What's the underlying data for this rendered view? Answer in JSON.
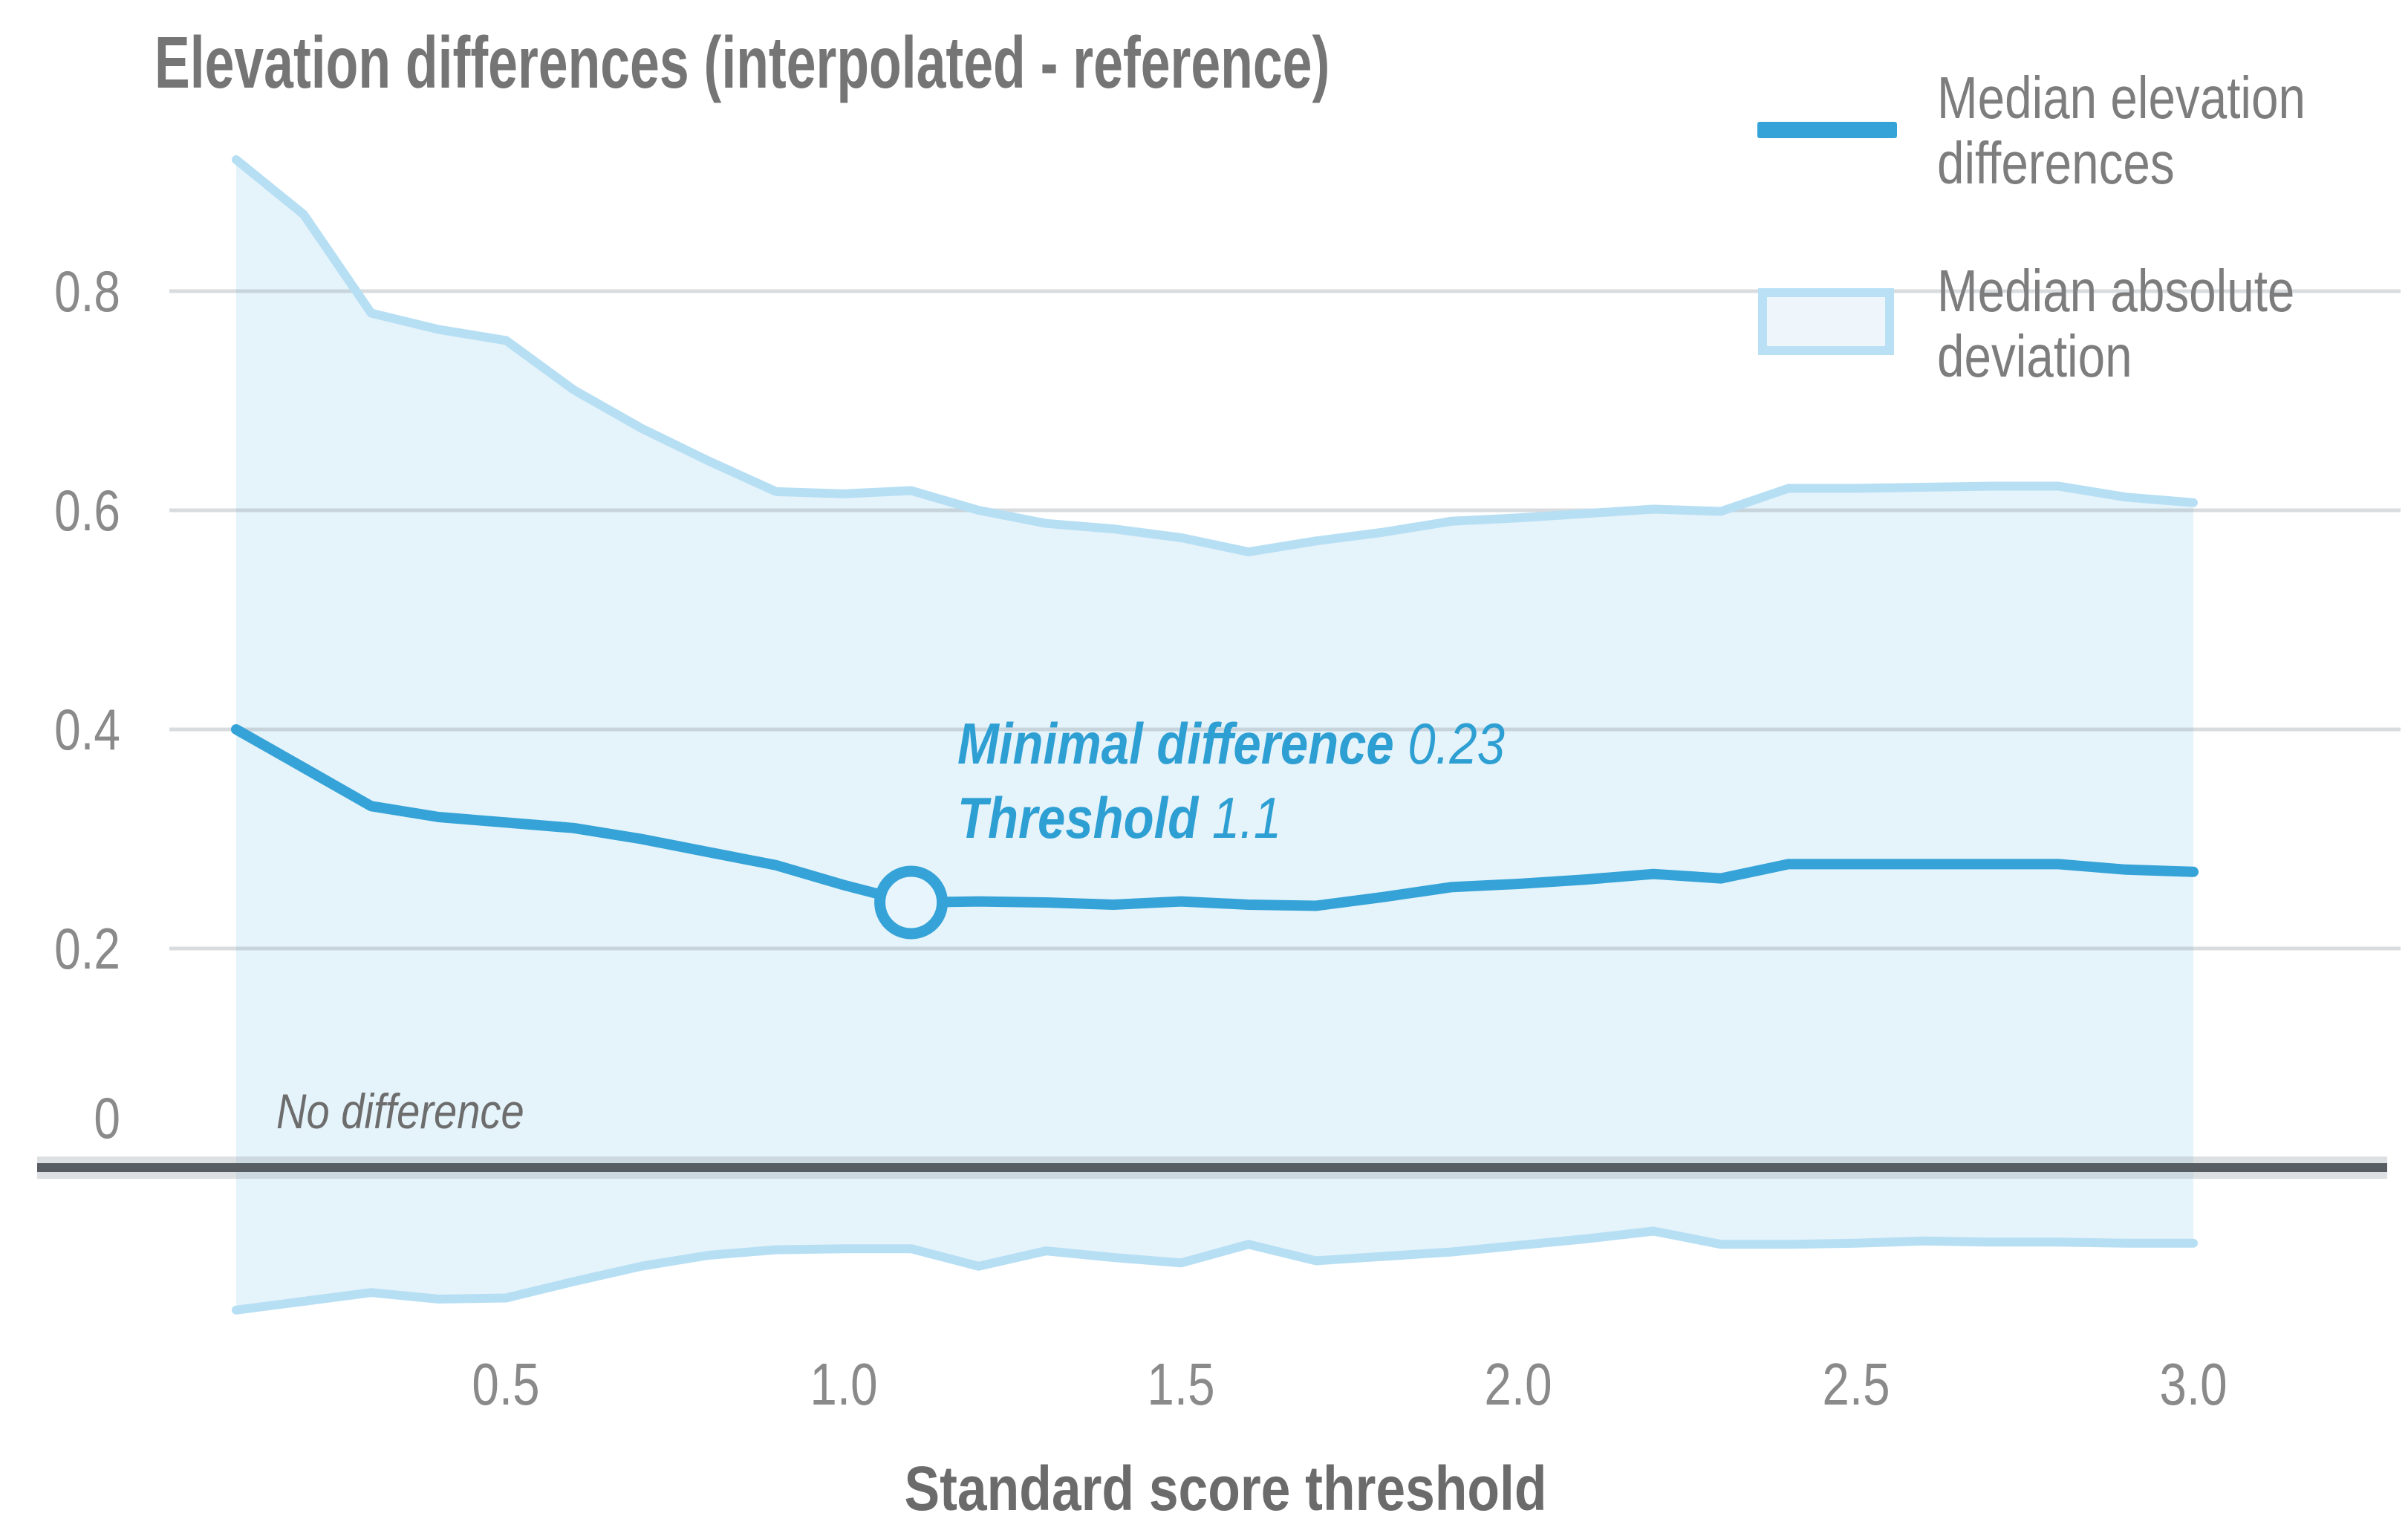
{
  "title": "Elevation differences (interpolated - reference)",
  "legend": {
    "items": [
      {
        "label": "Median elevation differences",
        "swatch": "line-swatch",
        "color": "#35a3d7"
      },
      {
        "label": "Median absolute deviation",
        "swatch": "band-swatch",
        "fill": "#eef6fc",
        "border": "#b9e0f5"
      }
    ]
  },
  "annotation": {
    "line1_label": "Minimal difference",
    "line1_value": "0.23",
    "line2_label": "Threshold",
    "line2_value": "1.1"
  },
  "zero_line_label": "No difference",
  "axes": {
    "x_title": "Standard score threshold",
    "x_ticks": [
      "0.5",
      "1.0",
      "1.5",
      "2.0",
      "2.5",
      "3.0"
    ],
    "y_ticks": [
      "0.8",
      "0.6",
      "0.4",
      "0.2",
      "0"
    ]
  },
  "colors": {
    "median_line": "#35a3d7",
    "band_fill": "#e5f3fb",
    "band_edge": "#b7dff4",
    "gridline": "#99a4ac",
    "zero_line": "#575d62",
    "annotation_text": "#2e9fd3",
    "title_text": "#757575",
    "tick_text": "#8a8a8a"
  },
  "chart_data": {
    "type": "line",
    "title": "Elevation differences (interpolated - reference)",
    "xlabel": "Standard score threshold",
    "ylabel": "",
    "x": [
      0.1,
      0.2,
      0.3,
      0.4,
      0.5,
      0.6,
      0.7,
      0.8,
      0.9,
      1.0,
      1.1,
      1.2,
      1.3,
      1.4,
      1.5,
      1.6,
      1.7,
      1.8,
      1.9,
      2.0,
      2.1,
      2.2,
      2.3,
      2.4,
      2.5,
      2.6,
      2.7,
      2.8,
      2.9,
      3.0
    ],
    "series": [
      {
        "name": "Median elevation differences",
        "values": [
          0.4,
          0.365,
          0.33,
          0.32,
          0.315,
          0.31,
          0.3,
          0.288,
          0.276,
          0.258,
          0.242,
          0.243,
          0.242,
          0.24,
          0.243,
          0.24,
          0.239,
          0.247,
          0.256,
          0.259,
          0.263,
          0.268,
          0.264,
          0.277,
          0.277,
          0.277,
          0.277,
          0.277,
          0.272,
          0.27
        ]
      },
      {
        "name": "Median absolute deviation upper bound",
        "values": [
          0.92,
          0.87,
          0.78,
          0.765,
          0.755,
          0.71,
          0.675,
          0.645,
          0.617,
          0.615,
          0.618,
          0.6,
          0.588,
          0.583,
          0.575,
          0.562,
          0.572,
          0.58,
          0.59,
          0.593,
          0.597,
          0.601,
          0.599,
          0.62,
          0.62,
          0.621,
          0.622,
          0.622,
          0.612,
          0.607
        ]
      },
      {
        "name": "Median absolute deviation lower bound",
        "values": [
          -0.13,
          -0.122,
          -0.114,
          -0.12,
          -0.119,
          -0.104,
          -0.09,
          -0.08,
          -0.075,
          -0.074,
          -0.074,
          -0.09,
          -0.076,
          -0.082,
          -0.087,
          -0.07,
          -0.085,
          -0.081,
          -0.077,
          -0.071,
          -0.065,
          -0.058,
          -0.07,
          -0.07,
          -0.069,
          -0.067,
          -0.068,
          -0.068,
          -0.069,
          -0.069
        ]
      }
    ],
    "minimum": {
      "x": 1.1,
      "value": 0.23
    },
    "x_tick_values": [
      0.5,
      1.0,
      1.5,
      2.0,
      2.5,
      3.0
    ],
    "y_tick_values": [
      0.8,
      0.6,
      0.4,
      0.2,
      0
    ],
    "xlim": [
      0.1,
      3.0
    ],
    "ylim": [
      -0.17,
      0.95
    ],
    "grid": "horizontal",
    "legend_position": "top-right"
  }
}
